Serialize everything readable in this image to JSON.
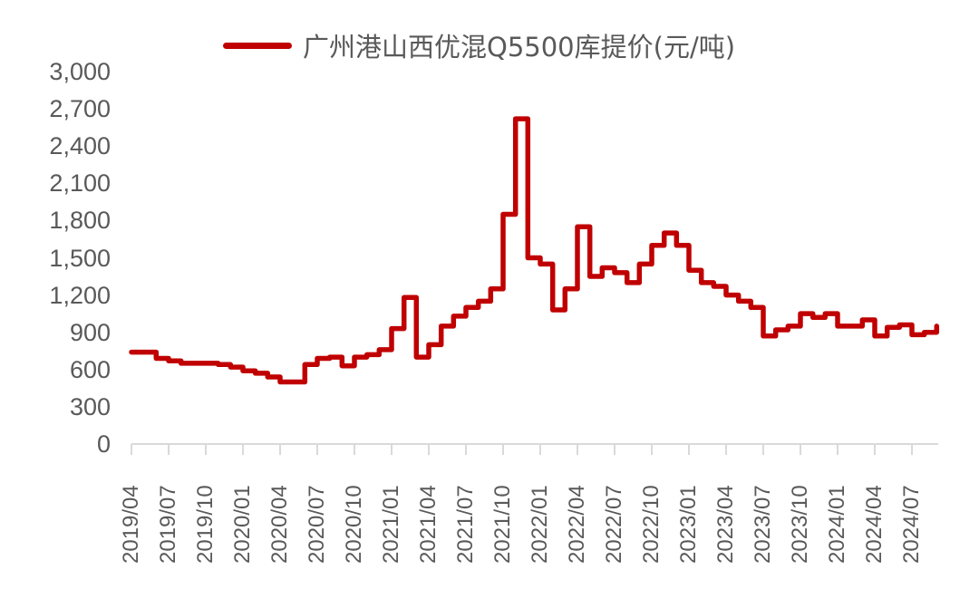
{
  "chart_data": {
    "type": "line",
    "title": "",
    "legend": {
      "position": "top",
      "entries": [
        "广州港山西优混Q5500库提价(元/吨)"
      ]
    },
    "xlabel": "",
    "ylabel": "",
    "ylim": [
      0,
      3000
    ],
    "yticks": [
      0,
      300,
      600,
      900,
      1200,
      1500,
      1800,
      2100,
      2400,
      2700,
      3000
    ],
    "ytick_labels": [
      "0",
      "300",
      "600",
      "900",
      "1,200",
      "1,500",
      "1,800",
      "2,100",
      "2,400",
      "2,700",
      "3,000"
    ],
    "xtick_labels": [
      "2019/04",
      "2019/07",
      "2019/10",
      "2020/01",
      "2020/04",
      "2020/07",
      "2020/10",
      "2021/01",
      "2021/04",
      "2021/07",
      "2021/10",
      "2022/01",
      "2022/04",
      "2022/07",
      "2022/10",
      "2023/01",
      "2023/04",
      "2023/07",
      "2023/10",
      "2024/01",
      "2024/04",
      "2024/07"
    ],
    "grid": false,
    "series": [
      {
        "name": "广州港山西优混Q5500库提价(元/吨)",
        "color": "#C00000",
        "x": [
          "2019/04",
          "2019/05",
          "2019/06",
          "2019/07",
          "2019/08",
          "2019/09",
          "2019/10",
          "2019/11",
          "2019/12",
          "2020/01",
          "2020/02",
          "2020/03",
          "2020/04",
          "2020/05",
          "2020/06",
          "2020/07",
          "2020/08",
          "2020/09",
          "2020/10",
          "2020/11",
          "2020/12",
          "2021/01",
          "2021/02",
          "2021/03",
          "2021/04",
          "2021/05",
          "2021/06",
          "2021/07",
          "2021/08",
          "2021/09",
          "2021/10",
          "2021/11",
          "2021/12",
          "2022/01",
          "2022/02",
          "2022/03",
          "2022/04",
          "2022/05",
          "2022/06",
          "2022/07",
          "2022/08",
          "2022/09",
          "2022/10",
          "2022/11",
          "2022/12",
          "2023/01",
          "2023/02",
          "2023/03",
          "2023/04",
          "2023/05",
          "2023/06",
          "2023/07",
          "2023/08",
          "2023/09",
          "2023/10",
          "2023/11",
          "2023/12",
          "2024/01",
          "2024/02",
          "2024/03",
          "2024/04",
          "2024/05",
          "2024/06",
          "2024/07",
          "2024/08",
          "2024/09"
        ],
        "values": [
          740,
          740,
          690,
          670,
          650,
          650,
          650,
          640,
          620,
          590,
          570,
          540,
          500,
          500,
          640,
          690,
          700,
          630,
          700,
          720,
          760,
          930,
          1180,
          700,
          800,
          950,
          1030,
          1100,
          1150,
          1250,
          1850,
          2620,
          1500,
          1450,
          1080,
          1250,
          1750,
          1350,
          1420,
          1380,
          1300,
          1450,
          1600,
          1700,
          1600,
          1400,
          1300,
          1270,
          1200,
          1150,
          1100,
          870,
          920,
          950,
          1050,
          1020,
          1050,
          950,
          950,
          1000,
          870,
          940,
          960,
          880,
          900,
          950
        ]
      }
    ]
  }
}
